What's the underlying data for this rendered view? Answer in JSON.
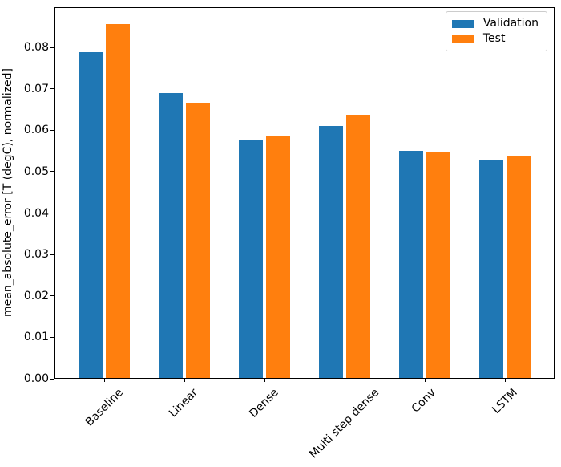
{
  "figure": {
    "background": "#ffffff"
  },
  "chart_data": {
    "type": "bar",
    "title": "",
    "xlabel": "",
    "ylabel": "mean_absolute_error [T (degC), normalized]",
    "categories": [
      "Baseline",
      "Linear",
      "Dense",
      "Multi step dense",
      "Conv",
      "LSTM"
    ],
    "series": [
      {
        "name": "Validation",
        "color": "#1f77b4",
        "values": [
          0.0787,
          0.0688,
          0.0574,
          0.0608,
          0.0549,
          0.0525
        ]
      },
      {
        "name": "Test",
        "color": "#ff7f0e",
        "values": [
          0.0854,
          0.0664,
          0.0585,
          0.0636,
          0.0547,
          0.0536
        ]
      }
    ],
    "ylim": [
      0,
      0.0897
    ],
    "yticks": {
      "values": [
        0,
        0.01,
        0.02,
        0.03,
        0.04,
        0.05,
        0.06,
        0.07,
        0.08
      ],
      "labels": [
        "0.00",
        "0.01",
        "0.02",
        "0.03",
        "0.04",
        "0.05",
        "0.06",
        "0.07",
        "0.08"
      ]
    },
    "xtick_rotation_deg": 45,
    "grid": false,
    "legend": {
      "position": "upper right",
      "entries": [
        "Validation",
        "Test"
      ]
    },
    "colors": {
      "axis": "#000000",
      "legend_border": "#cccccc",
      "validation": "#1f77b4",
      "test": "#ff7f0e"
    }
  }
}
